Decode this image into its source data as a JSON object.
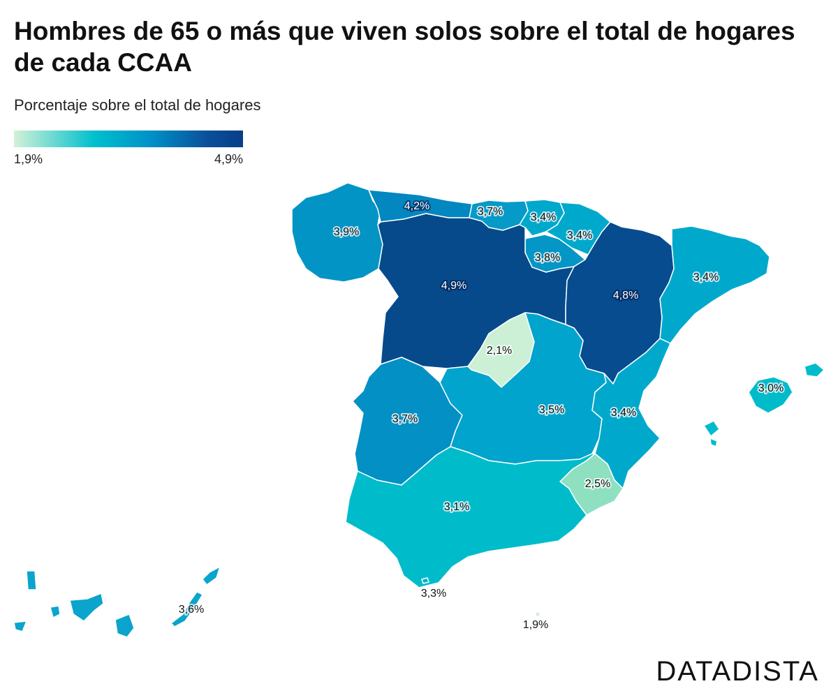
{
  "header": {
    "title": "Hombres de 65 o más que viven solos sobre el total de hogares de cada CCAA",
    "subtitle": "Porcentaje sobre el total de hogares"
  },
  "legend": {
    "min_label": "1,9%",
    "max_label": "4,9%",
    "colors": [
      "#d4f1d8",
      "#00c0cc",
      "#0090c8",
      "#0b4e99",
      "#063f88"
    ]
  },
  "chart_data": {
    "type": "choropleth",
    "title": "Hombres de 65 o más que viven solos sobre el total de hogares de cada CCAA",
    "subtitle": "Porcentaje sobre el total de hogares",
    "scale": {
      "min": 1.9,
      "max": 4.9
    },
    "regions": [
      {
        "value": 3.9,
        "label": "3,9%",
        "color": "#0294c4"
      },
      {
        "value": 4.2,
        "label": "4,2%",
        "color": "#0287c0"
      },
      {
        "value": 3.7,
        "label": "3,7%",
        "color": "#059ac8"
      },
      {
        "value": 3.4,
        "label": "3,4%",
        "color": "#00a9cc"
      },
      {
        "value": 3.4,
        "label": "3,4%",
        "color": "#00a9cc"
      },
      {
        "value": 3.8,
        "label": "3,8%",
        "color": "#0396c6"
      },
      {
        "value": 4.9,
        "label": "4,9%",
        "color": "#064a8c"
      },
      {
        "value": 4.8,
        "label": "4,8%",
        "color": "#064c8f"
      },
      {
        "value": 3.4,
        "label": "3,4%",
        "color": "#00a9cc"
      },
      {
        "value": 2.1,
        "label": "2,1%",
        "color": "#ccf0d6"
      },
      {
        "value": 3.7,
        "label": "3,7%",
        "color": "#0390c4"
      },
      {
        "value": 3.5,
        "label": "3,5%",
        "color": "#00a4cc"
      },
      {
        "value": 3.4,
        "label": "3,4%",
        "color": "#00a9cc"
      },
      {
        "value": 2.5,
        "label": "2,5%",
        "color": "#8ee0c0"
      },
      {
        "value": 3.1,
        "label": "3,1%",
        "color": "#00bccb"
      },
      {
        "value": 3.0,
        "label": "3,0%",
        "color": "#00bccb"
      },
      {
        "value": 3.6,
        "label": "3,6%",
        "color": "#0aa4cc"
      },
      {
        "value": 3.3,
        "label": "3,3%",
        "color": "#00b0cc"
      },
      {
        "value": 1.9,
        "label": "1,9%",
        "color": "#d4f1d8"
      }
    ]
  },
  "brand": {
    "text": "DATADISTA"
  }
}
